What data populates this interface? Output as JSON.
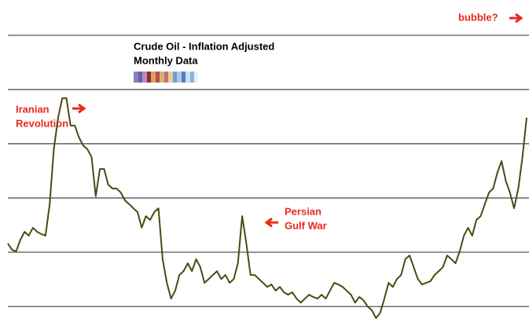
{
  "chart_data": {
    "type": "line",
    "title": "Crude Oil - Inflation Adjusted",
    "subtitle": "Monthly Data",
    "annotations": [
      "bubble?",
      "Iranian",
      "Revolution",
      "Persian",
      "Gulf War"
    ],
    "color": "#4b4a14",
    "grid": true,
    "ylim": [
      15,
      133
    ],
    "yticks": [
      20,
      40,
      60,
      80,
      100,
      120
    ],
    "values": [
      43.2,
      40.9,
      40.3,
      44.6,
      47.5,
      46.1,
      49.0,
      47.5,
      46.7,
      46.1,
      57.7,
      78.0,
      89.6,
      96.8,
      96.8,
      86.7,
      86.7,
      82.3,
      79.4,
      78.0,
      75.1,
      60.6,
      70.7,
      70.7,
      64.9,
      63.5,
      63.5,
      62.0,
      59.1,
      57.7,
      56.2,
      54.8,
      49.0,
      53.3,
      51.9,
      54.8,
      56.2,
      37.4,
      28.7,
      22.9,
      25.8,
      31.6,
      33.0,
      35.9,
      33.0,
      37.4,
      34.5,
      28.7,
      30.1,
      31.6,
      33.0,
      30.1,
      31.6,
      28.7,
      30.1,
      35.9,
      53.3,
      43.2,
      31.6,
      31.6,
      30.1,
      28.7,
      27.2,
      28.1,
      25.8,
      27.2,
      25.2,
      24.3,
      25.2,
      22.9,
      21.4,
      22.9,
      24.3,
      23.5,
      22.9,
      24.3,
      22.9,
      25.8,
      28.7,
      28.1,
      27.2,
      25.8,
      24.3,
      21.4,
      23.5,
      22.3,
      20.0,
      18.6,
      15.7,
      17.7,
      22.9,
      28.7,
      27.2,
      30.1,
      31.6,
      37.4,
      38.8,
      34.5,
      30.1,
      28.1,
      28.7,
      29.3,
      31.6,
      33.0,
      34.5,
      38.8,
      37.4,
      35.9,
      40.3,
      46.1,
      49.0,
      46.1,
      51.9,
      53.3,
      57.7,
      62.0,
      63.5,
      69.3,
      73.6,
      66.4,
      62.0,
      56.2,
      63.5,
      75.1,
      89.6
    ]
  }
}
